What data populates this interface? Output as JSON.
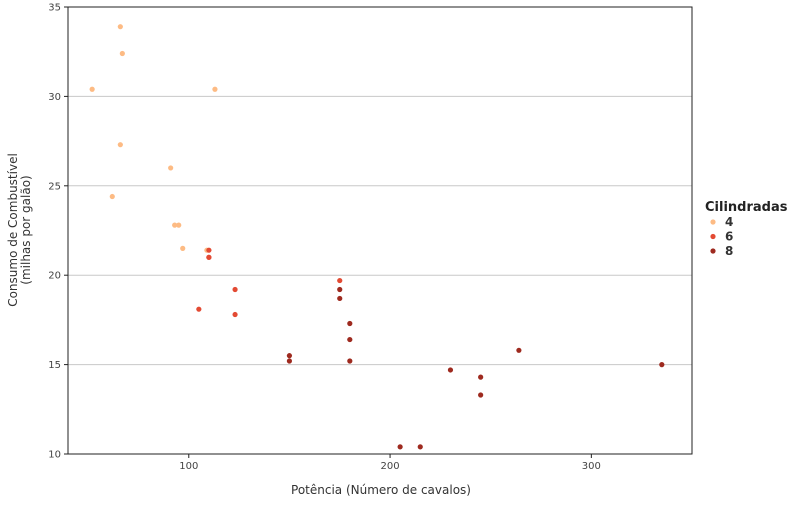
{
  "chart_data": {
    "type": "scatter",
    "title": "",
    "xlabel": "Potência (Número de cavalos)",
    "ylabel_lines": [
      "Consumo de Combustível",
      "(milhas por galão)"
    ],
    "xlim": [
      40,
      350
    ],
    "ylim": [
      10,
      35
    ],
    "x_ticks": [
      100,
      200,
      300
    ],
    "y_ticks": [
      10,
      15,
      20,
      25,
      30,
      35
    ],
    "grid": "horizontal",
    "legend": {
      "title": "Cilindradas",
      "placement": "right"
    },
    "series": [
      {
        "name": "4",
        "color": "#fdbb84",
        "points": [
          [
            66,
            33.9
          ],
          [
            67,
            32.4
          ],
          [
            52,
            30.4
          ],
          [
            113,
            30.4
          ],
          [
            66,
            27.3
          ],
          [
            91,
            26.0
          ],
          [
            62,
            24.4
          ],
          [
            93,
            22.8
          ],
          [
            95,
            22.8
          ],
          [
            97,
            21.5
          ],
          [
            109,
            21.4
          ]
        ]
      },
      {
        "name": "6",
        "color": "#e34a33",
        "points": [
          [
            110,
            21.4
          ],
          [
            110,
            21.0
          ],
          [
            110,
            21.0
          ],
          [
            175,
            19.7
          ],
          [
            123,
            19.2
          ],
          [
            105,
            18.1
          ],
          [
            123,
            17.8
          ]
        ]
      },
      {
        "name": "8",
        "color": "#9e2a1f",
        "points": [
          [
            175,
            19.2
          ],
          [
            175,
            18.7
          ],
          [
            180,
            17.3
          ],
          [
            180,
            16.4
          ],
          [
            264,
            15.8
          ],
          [
            150,
            15.5
          ],
          [
            150,
            15.2
          ],
          [
            180,
            15.2
          ],
          [
            335,
            15.0
          ],
          [
            230,
            14.7
          ],
          [
            245,
            14.3
          ],
          [
            245,
            13.3
          ],
          [
            205,
            10.4
          ],
          [
            215,
            10.4
          ]
        ]
      }
    ]
  }
}
